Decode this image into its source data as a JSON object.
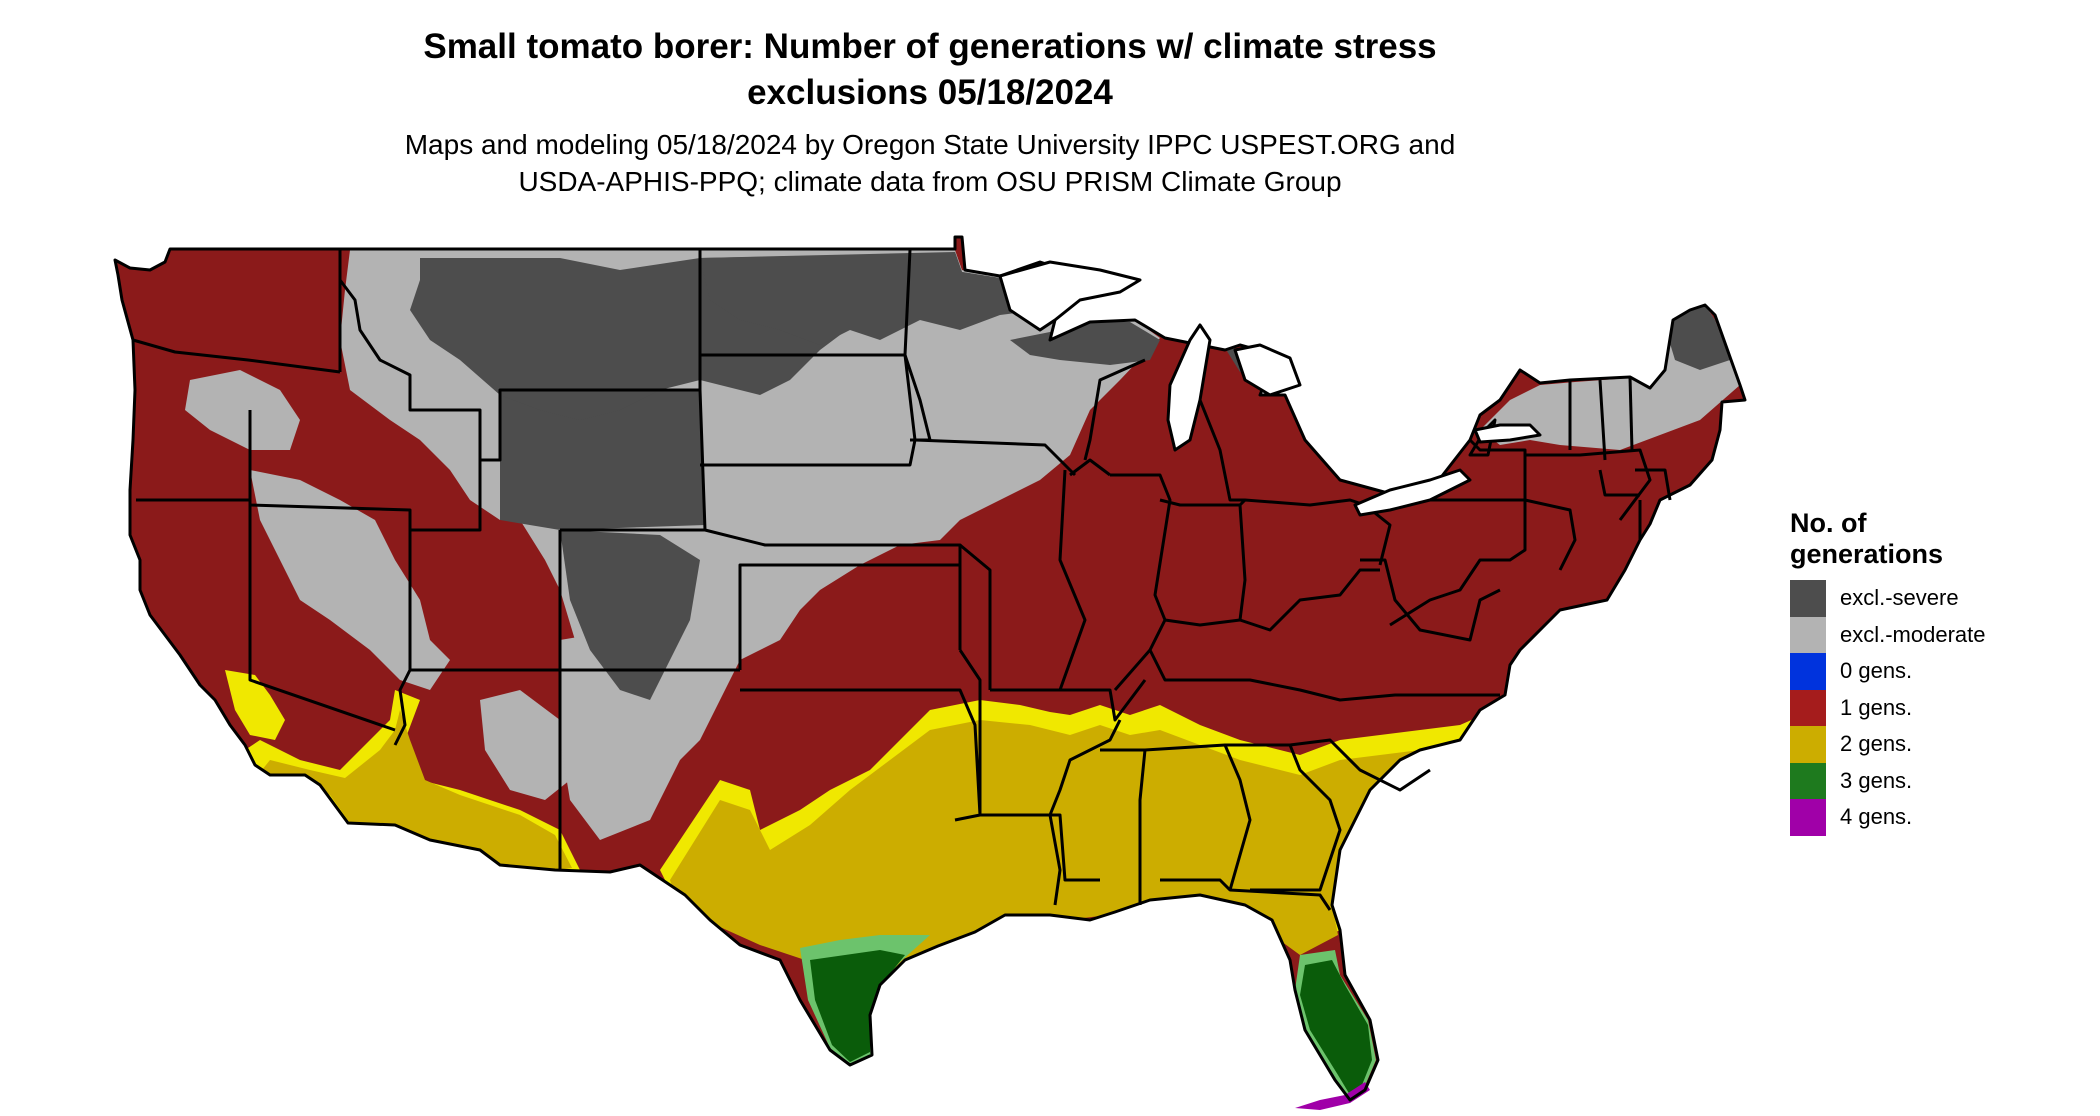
{
  "title": {
    "line1": "Small tomato borer: Number of generations w/ climate stress",
    "line2": "exclusions 05/18/2024"
  },
  "subtitle": {
    "line1": "Maps and modeling 05/18/2024 by Oregon State University IPPC USPEST.ORG and",
    "line2": "USDA-APHIS-PPQ; climate data from OSU PRISM Climate Group"
  },
  "legend": {
    "title_line1": "No. of",
    "title_line2": "generations",
    "items": [
      {
        "label": "excl.-severe",
        "color": "#4d4d4d"
      },
      {
        "label": "excl.-moderate",
        "color": "#b3b3b3"
      },
      {
        "label": "0 gens.",
        "color": "#0033dd"
      },
      {
        "label": "1 gens.",
        "color": "#a51c1c"
      },
      {
        "label": "2 gens.",
        "color": "#ccad00"
      },
      {
        "label": "3 gens.",
        "color": "#1e7a1e"
      },
      {
        "label": "4 gens.",
        "color": "#a000a8"
      }
    ]
  },
  "colors": {
    "map_severe": "#4d4d4d",
    "map_moderate": "#b3b3b3",
    "map_one_gen": "#8b1a1a",
    "map_two_gen": "#ccad00",
    "map_two_gen_edge": "#f0e800",
    "map_three_gen": "#0a5c0a",
    "map_three_gen_edge": "#6cc36c",
    "map_four_gen": "#a000a8",
    "state_lines": "#000000"
  }
}
